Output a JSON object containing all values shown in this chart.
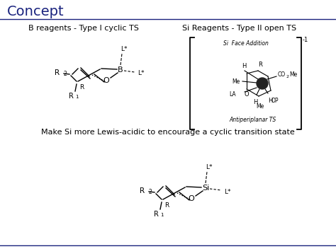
{
  "title": "Concept",
  "title_color": "#1a237e",
  "title_fontsize": 14,
  "bg_color": "#ffffff",
  "separator_color": "#1a237e",
  "label_left": "B reagents - Type I cyclic TS",
  "label_right": "Si Reagents - Type II open TS",
  "text_middle": "Make Si more Lewis-acidic to encourage a cyclic transition state",
  "label_fontsize": 8,
  "middle_fontsize": 8,
  "body_text_color": "#000000"
}
